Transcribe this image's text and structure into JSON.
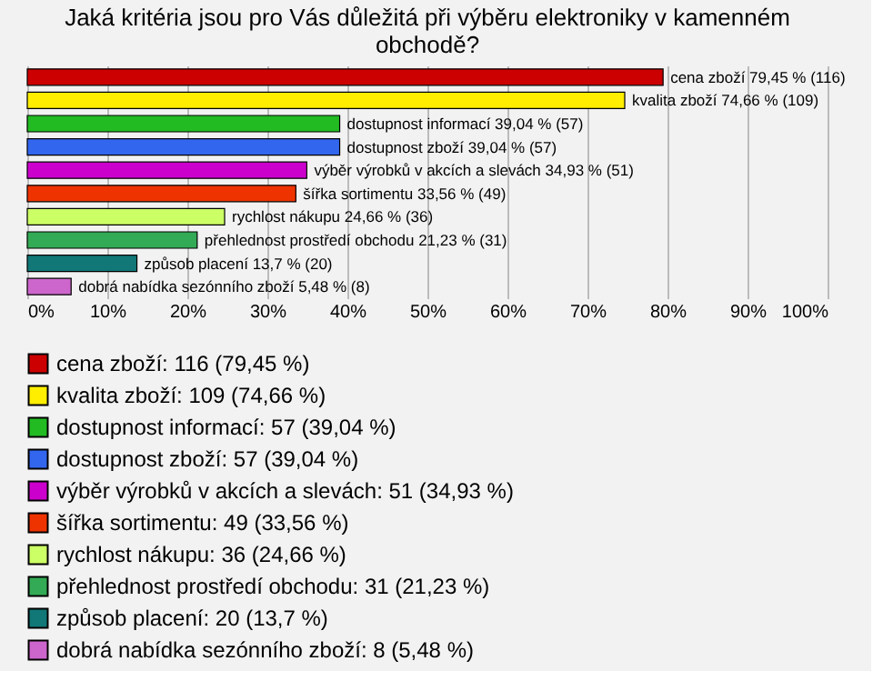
{
  "chart_data": {
    "type": "bar",
    "orientation": "horizontal",
    "title": [
      "Jaká kritéria jsou pro Vás důležitá při výběru elektroniky v kamenném",
      "obchodě?"
    ],
    "categories": [
      null,
      null,
      null,
      null,
      null,
      null,
      null,
      null,
      null,
      null
    ],
    "series": [
      {
        "name": "cena zboží: 116 (79,45 %)",
        "color": "#cc0000",
        "values": [
          79.45,
          null,
          null,
          null,
          null,
          null,
          null,
          null,
          null,
          null
        ],
        "value_labels": [
          "cena zboží 79,45 % (116)",
          null,
          null,
          null,
          null,
          null,
          null,
          null,
          null,
          null
        ]
      },
      {
        "name": "kvalita zboží: 109 (74,66 %)",
        "color": "#ffee00",
        "values": [
          null,
          74.66,
          null,
          null,
          null,
          null,
          null,
          null,
          null,
          null
        ],
        "value_labels": [
          null,
          "kvalita zboží 74,66 % (109)",
          null,
          null,
          null,
          null,
          null,
          null,
          null,
          null
        ]
      },
      {
        "name": "dostupnost informací: 57 (39,04 %)",
        "color": "#22bb22",
        "values": [
          null,
          null,
          39.04,
          null,
          null,
          null,
          null,
          null,
          null,
          null
        ],
        "value_labels": [
          null,
          null,
          "dostupnost informací 39,04 % (57)",
          null,
          null,
          null,
          null,
          null,
          null,
          null
        ]
      },
      {
        "name": "dostupnost zboží: 57 (39,04 %)",
        "color": "#3366ee",
        "values": [
          null,
          null,
          null,
          39.04,
          null,
          null,
          null,
          null,
          null,
          null
        ],
        "value_labels": [
          null,
          null,
          null,
          "dostupnost zboží 39,04 % (57)",
          null,
          null,
          null,
          null,
          null,
          null
        ]
      },
      {
        "name": "výběr výrobků v akcích a slevách: 51 (34,93 %)",
        "color": "#cc00cc",
        "values": [
          null,
          null,
          null,
          null,
          34.93,
          null,
          null,
          null,
          null,
          null
        ],
        "value_labels": [
          null,
          null,
          null,
          null,
          "výběr výrobků v akcích a slevách 34,93 % (51)",
          null,
          null,
          null,
          null,
          null
        ]
      },
      {
        "name": "šířka sortimentu: 49 (33,56 %)",
        "color": "#ee3300",
        "values": [
          null,
          null,
          null,
          null,
          null,
          33.56,
          null,
          null,
          null,
          null
        ],
        "value_labels": [
          null,
          null,
          null,
          null,
          null,
          "šířka sortimentu 33,56 % (49)",
          null,
          null,
          null,
          null
        ]
      },
      {
        "name": "rychlost nákupu: 36 (24,66 %)",
        "color": "#ccff66",
        "values": [
          null,
          null,
          null,
          null,
          null,
          null,
          24.66,
          null,
          null,
          null
        ],
        "value_labels": [
          null,
          null,
          null,
          null,
          null,
          null,
          "rychlost nákupu 24,66 % (36)",
          null,
          null,
          null
        ]
      },
      {
        "name": "přehlednost prostředí obchodu: 31 (21,23 %)",
        "color": "#33aa55",
        "values": [
          null,
          null,
          null,
          null,
          null,
          null,
          null,
          21.23,
          null,
          null
        ],
        "value_labels": [
          null,
          null,
          null,
          null,
          null,
          null,
          null,
          "přehlednost prostředí obchodu 21,23 % (31)",
          null,
          null
        ]
      },
      {
        "name": "způsob placení: 20 (13,7 %)",
        "color": "#117777",
        "values": [
          null,
          null,
          null,
          null,
          null,
          null,
          null,
          null,
          13.7,
          null
        ],
        "value_labels": [
          null,
          null,
          null,
          null,
          null,
          null,
          null,
          null,
          "způsob placení 13,7 % (20)",
          null
        ]
      },
      {
        "name": "dobrá nabídka sezónního zboží: 8 (5,48 %)",
        "color": "#cc66cc",
        "values": [
          null,
          null,
          null,
          null,
          null,
          null,
          null,
          null,
          null,
          5.48
        ],
        "value_labels": [
          null,
          null,
          null,
          null,
          null,
          null,
          null,
          null,
          null,
          "dobrá nabídka sezónního zboží 5,48 % (8)"
        ]
      }
    ],
    "xlim": [
      0,
      100
    ],
    "xticks": [
      {
        "value": 0,
        "label": "0%"
      },
      {
        "value": 10,
        "label": "10%"
      },
      {
        "value": 20,
        "label": "20%"
      },
      {
        "value": 30,
        "label": "30%"
      },
      {
        "value": 40,
        "label": "40%"
      },
      {
        "value": 50,
        "label": "50%"
      },
      {
        "value": 60,
        "label": "60%"
      },
      {
        "value": 70,
        "label": "70%"
      },
      {
        "value": 80,
        "label": "80%"
      },
      {
        "value": 90,
        "label": "90%"
      },
      {
        "value": 100,
        "label": "100%"
      }
    ],
    "grid": "x",
    "legend": "bottom",
    "tick_labels": "x"
  }
}
